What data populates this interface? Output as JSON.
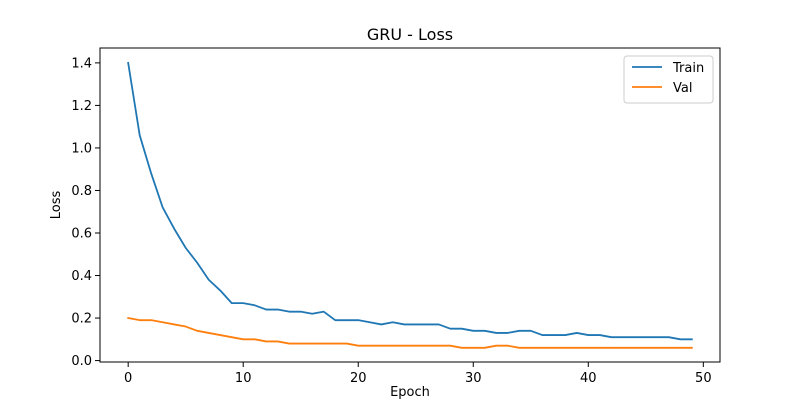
{
  "chart_data": {
    "type": "line",
    "title": "GRU - Loss",
    "xlabel": "Epoch",
    "ylabel": "Loss",
    "xlim": [
      -2.45,
      51.45
    ],
    "ylim": [
      -0.0067,
      1.47
    ],
    "xticks": [
      0,
      10,
      20,
      30,
      40,
      50
    ],
    "yticks": [
      0.0,
      0.2,
      0.4,
      0.6,
      0.8,
      1.0,
      1.2,
      1.4
    ],
    "xtick_labels": [
      "0",
      "10",
      "20",
      "30",
      "40",
      "50"
    ],
    "ytick_labels": [
      "0.0",
      "0.2",
      "0.4",
      "0.6",
      "0.8",
      "1.0",
      "1.2",
      "1.4"
    ],
    "grid": false,
    "legend_position": "top-right",
    "x": [
      0,
      1,
      2,
      3,
      4,
      5,
      6,
      7,
      8,
      9,
      10,
      11,
      12,
      13,
      14,
      15,
      16,
      17,
      18,
      19,
      20,
      21,
      22,
      23,
      24,
      25,
      26,
      27,
      28,
      29,
      30,
      31,
      32,
      33,
      34,
      35,
      36,
      37,
      38,
      39,
      40,
      41,
      42,
      43,
      44,
      45,
      46,
      47,
      48,
      49
    ],
    "series": [
      {
        "name": "Train",
        "color": "#1f77b4",
        "values": [
          1.4,
          1.06,
          0.88,
          0.72,
          0.62,
          0.53,
          0.46,
          0.38,
          0.33,
          0.27,
          0.27,
          0.26,
          0.24,
          0.24,
          0.23,
          0.23,
          0.22,
          0.23,
          0.19,
          0.19,
          0.19,
          0.18,
          0.17,
          0.18,
          0.17,
          0.17,
          0.17,
          0.17,
          0.15,
          0.15,
          0.14,
          0.14,
          0.13,
          0.13,
          0.14,
          0.14,
          0.12,
          0.12,
          0.12,
          0.13,
          0.12,
          0.12,
          0.11,
          0.11,
          0.11,
          0.11,
          0.11,
          0.11,
          0.1,
          0.1
        ]
      },
      {
        "name": "Val",
        "color": "#ff7f0e",
        "values": [
          0.2,
          0.19,
          0.19,
          0.18,
          0.17,
          0.16,
          0.14,
          0.13,
          0.12,
          0.11,
          0.1,
          0.1,
          0.09,
          0.09,
          0.08,
          0.08,
          0.08,
          0.08,
          0.08,
          0.08,
          0.07,
          0.07,
          0.07,
          0.07,
          0.07,
          0.07,
          0.07,
          0.07,
          0.07,
          0.06,
          0.06,
          0.06,
          0.07,
          0.07,
          0.06,
          0.06,
          0.06,
          0.06,
          0.06,
          0.06,
          0.06,
          0.06,
          0.06,
          0.06,
          0.06,
          0.06,
          0.06,
          0.06,
          0.06,
          0.06
        ]
      }
    ]
  }
}
